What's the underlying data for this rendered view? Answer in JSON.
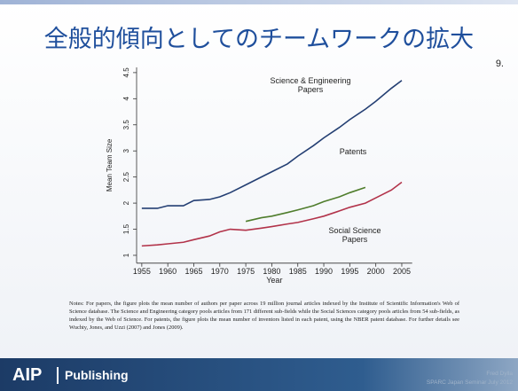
{
  "slide_title": "全般的傾向としてのチームワークの拡大",
  "slide_number": "9.",
  "chart_data": {
    "type": "line",
    "x": [
      1955,
      1958,
      1960,
      1963,
      1965,
      1968,
      1970,
      1972,
      1975,
      1978,
      1980,
      1983,
      1985,
      1988,
      1990,
      1993,
      1995,
      1998,
      2000,
      2003,
      2005
    ],
    "series": [
      {
        "name": "Science & Engineering Papers",
        "color": "#243f73",
        "values": [
          1.9,
          1.9,
          1.95,
          1.95,
          2.05,
          2.07,
          2.12,
          2.2,
          2.35,
          2.5,
          2.6,
          2.75,
          2.9,
          3.1,
          3.25,
          3.45,
          3.6,
          3.8,
          3.95,
          4.2,
          4.35
        ]
      },
      {
        "name": "Patents",
        "color": "#4f7d2c",
        "values": [
          null,
          null,
          null,
          null,
          null,
          null,
          null,
          null,
          1.65,
          1.72,
          1.75,
          1.82,
          1.87,
          1.95,
          2.03,
          2.12,
          2.2,
          2.3,
          null,
          null,
          null
        ]
      },
      {
        "name": "Social Science Papers",
        "color": "#b2334a",
        "values": [
          1.18,
          1.2,
          1.22,
          1.25,
          1.3,
          1.37,
          1.45,
          1.5,
          1.48,
          1.52,
          1.55,
          1.6,
          1.63,
          1.7,
          1.75,
          1.85,
          1.92,
          2.0,
          2.1,
          2.25,
          2.4
        ]
      }
    ],
    "x_label": "Year",
    "y_label": "Mean Team Size",
    "xlim": [
      1954,
      2007
    ],
    "xticks": [
      1955,
      1960,
      1965,
      1970,
      1975,
      1980,
      1985,
      1990,
      1995,
      2000,
      2005
    ],
    "ylim": [
      0.85,
      4.6
    ],
    "yticks": [
      1,
      1.5,
      2,
      2.5,
      3,
      3.5,
      4,
      4.5
    ]
  },
  "notes": "Notes: For papers, the figure plots the mean number of authors per paper across 19 million journal articles indexed by the Institute of Scientific Information's Web of Science database. The Science and Engineering category pools articles from 171 different sub-fields while the Social Sciences category pools articles from 54 sub-fields, as indexed by the Web of Science. For patents, the figure plots the mean number of inventors listed in each patent, using the NBER patent database. For further details see Wuchty, Jones, and Uzzi (2007) and Jones (2009).",
  "footer": {
    "brand": "AIP",
    "product": "Publishing",
    "presenter": "Fred Dylla",
    "event": "SPARC Japan Seminar July 2012"
  }
}
